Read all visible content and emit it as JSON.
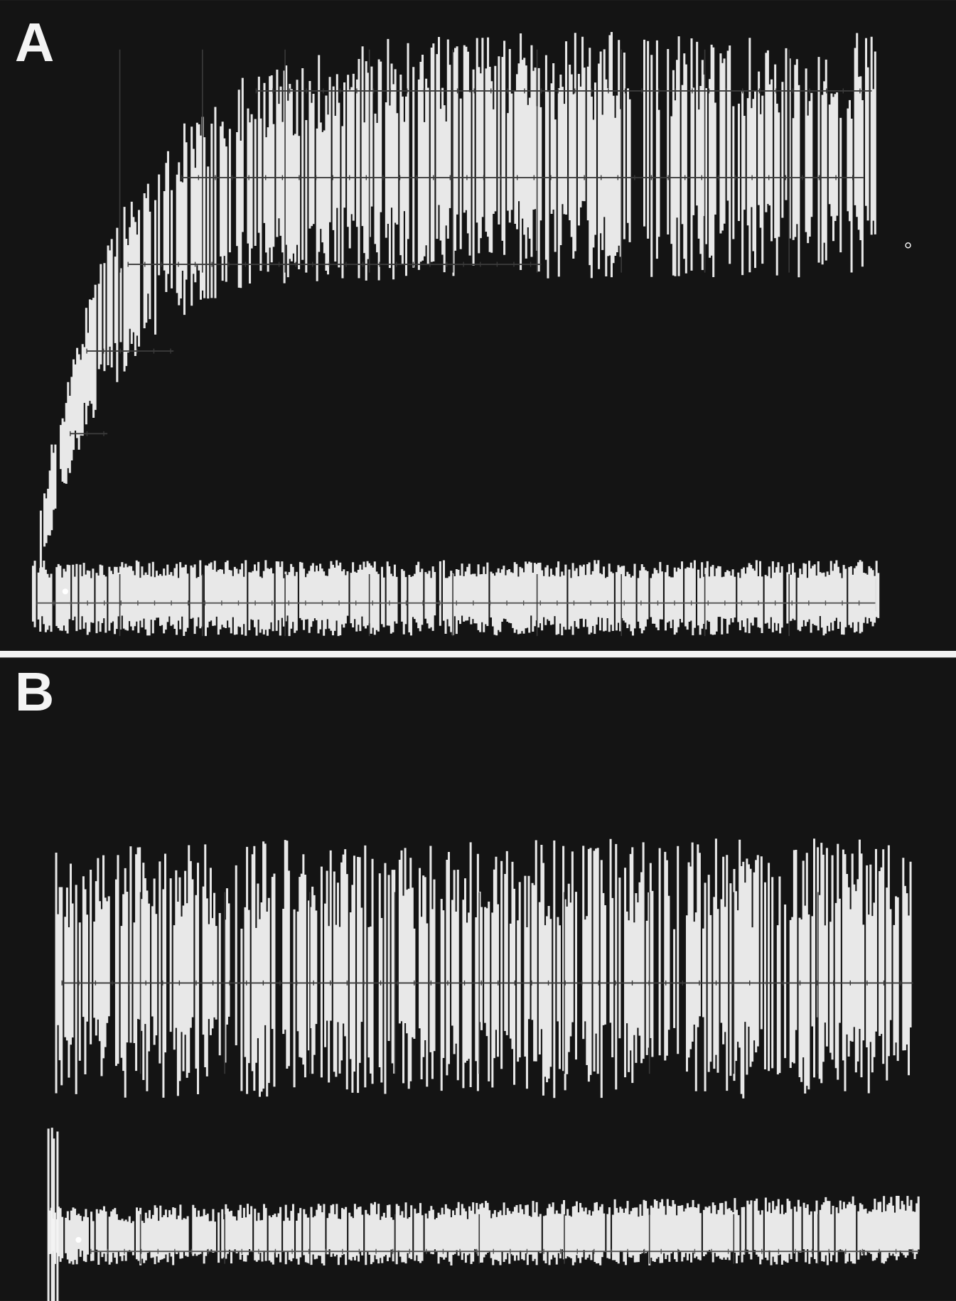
{
  "panels": [
    {
      "label": "A"
    },
    {
      "label": "B"
    }
  ]
}
